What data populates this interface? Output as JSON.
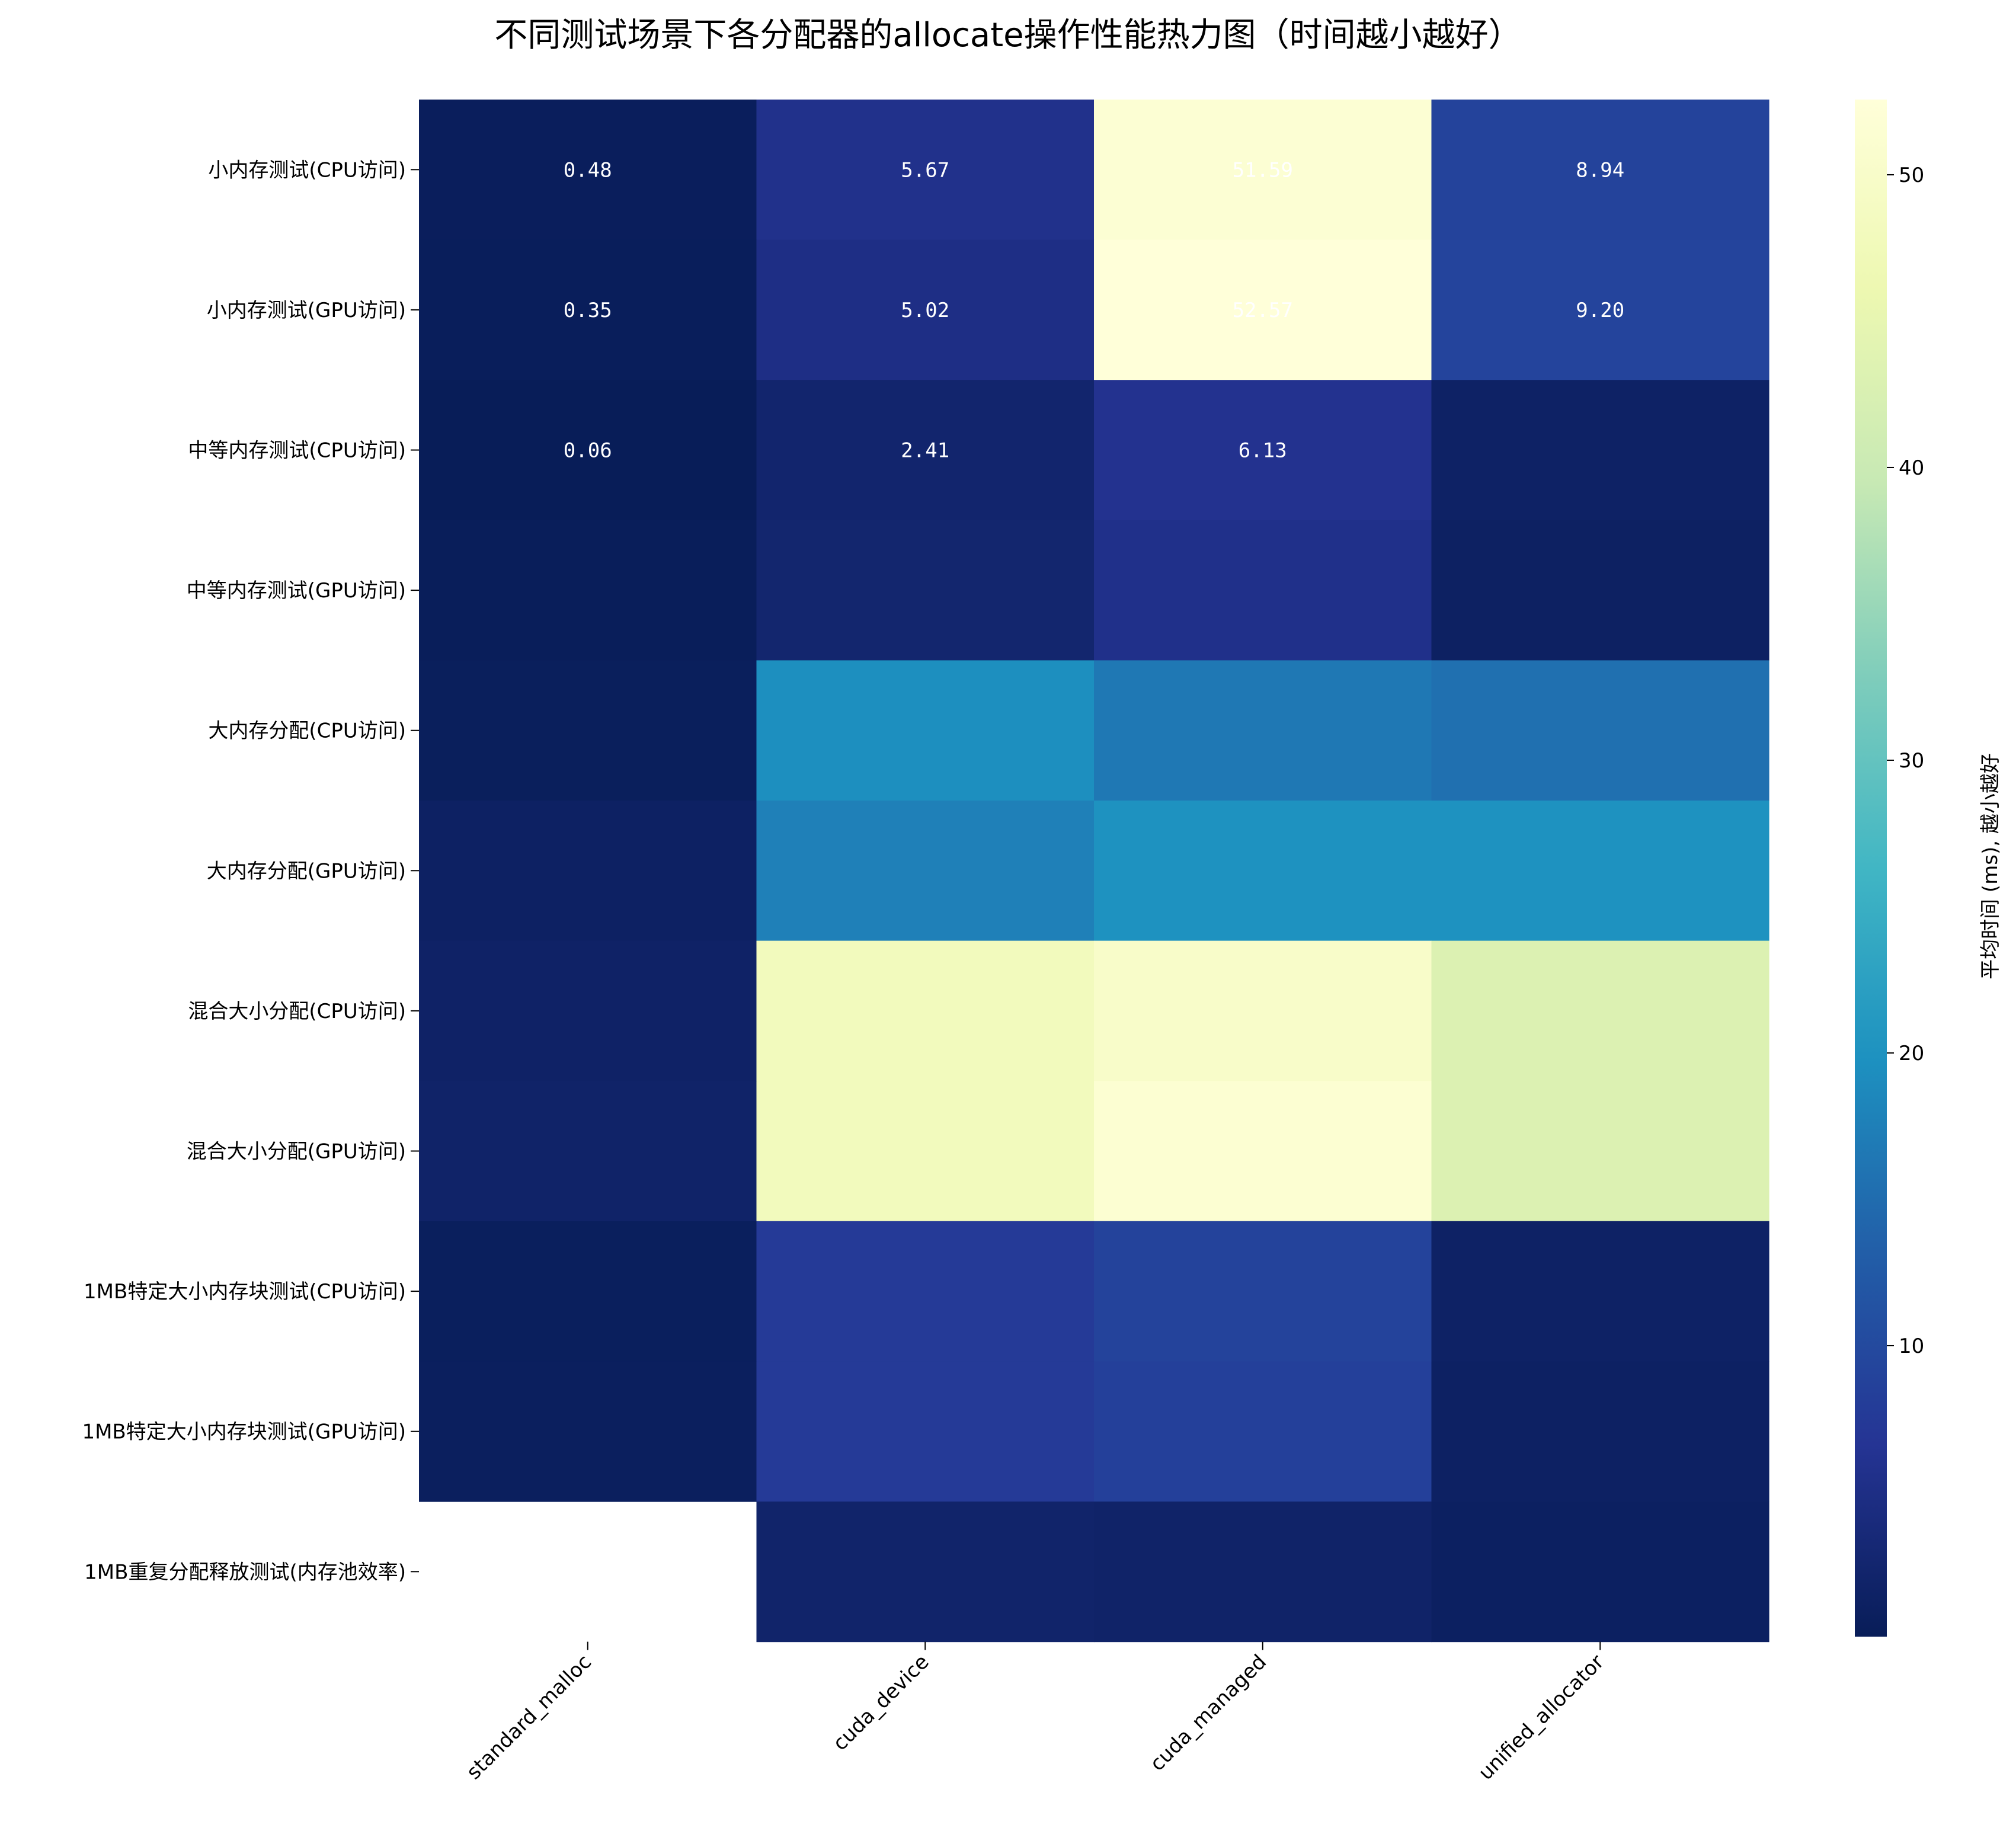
{
  "chart_data": {
    "type": "heatmap",
    "title": "不同测试场景下各分配器的allocate操作性能热力图（时间越小越好）",
    "x_categories": [
      "standard_malloc",
      "cuda_device",
      "cuda_managed",
      "unified_allocator"
    ],
    "y_categories": [
      "小内存测试(CPU访问)",
      "小内存测试(GPU访问)",
      "中等内存测试(CPU访问)",
      "中等内存测试(GPU访问)",
      "大内存分配(CPU访问)",
      "大内存分配(GPU访问)",
      "混合大小分配(CPU访问)",
      "混合大小分配(GPU访问)",
      "1MB特定大小内存块测试(CPU访问)",
      "1MB特定大小内存块测试(GPU访问)",
      "1MB重复分配释放测试(内存池效率)"
    ],
    "values": [
      [
        0.48,
        5.67,
        51.59,
        8.94
      ],
      [
        0.35,
        5.02,
        52.57,
        9.2
      ],
      [
        0.06,
        2.41,
        6.13,
        1.5
      ],
      [
        0.3,
        2.5,
        5.5,
        1.2
      ],
      [
        0.5,
        19.5,
        16.5,
        15.5
      ],
      [
        1.3,
        17.5,
        20.0,
        20.0
      ],
      [
        1.6,
        48.0,
        50.0,
        43.0
      ],
      [
        1.8,
        48.0,
        51.5,
        43.0
      ],
      [
        0.6,
        7.5,
        9.0,
        1.5
      ],
      [
        0.7,
        7.5,
        8.5,
        1.3
      ],
      [
        null,
        2.0,
        1.8,
        1.0
      ]
    ],
    "cell_labels": [
      [
        "0.48",
        "5.67",
        "51.59",
        "8.94"
      ],
      [
        "0.35",
        "5.02",
        "52.57",
        "9.20"
      ],
      [
        "0.06",
        "2.41",
        "6.13",
        ""
      ],
      [
        "",
        "",
        "",
        ""
      ],
      [
        "",
        "",
        "",
        ""
      ],
      [
        "",
        "",
        "",
        ""
      ],
      [
        "",
        "",
        "",
        ""
      ],
      [
        "",
        "",
        "",
        ""
      ],
      [
        "",
        "",
        "",
        ""
      ],
      [
        "",
        "",
        "",
        ""
      ],
      [
        "",
        "",
        "",
        ""
      ]
    ],
    "colorbar": {
      "label": "平均时间 (ms), 越小越好",
      "vmin": 0.06,
      "vmax": 52.57,
      "ticks": [
        10,
        20,
        30,
        40,
        50
      ],
      "colormap": "YlGnBu"
    },
    "colors": [
      "#081d58",
      "#253494",
      "#225ea8",
      "#1d91c0",
      "#41b6c4",
      "#7fcdbb",
      "#c7e9b4",
      "#edf8b1",
      "#ffffd9"
    ]
  }
}
